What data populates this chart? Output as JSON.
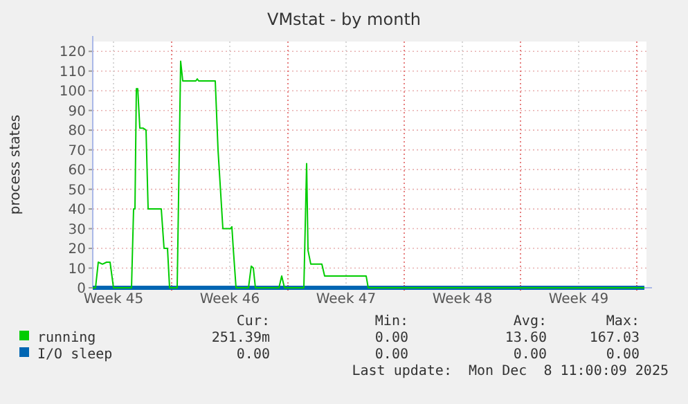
{
  "chart_data": {
    "type": "line",
    "title": "VMstat - by month",
    "ylabel": "process states",
    "xlim": [
      "2025-11-05T06:00",
      "2025-12-08T14:00"
    ],
    "xticks": [
      {
        "value": "2025-11-06T12:00",
        "label": "Week 45"
      },
      {
        "value": "2025-11-10T00:00",
        "label": null
      },
      {
        "value": "2025-11-13T12:00",
        "label": "Week 46"
      },
      {
        "value": "2025-11-17T00:00",
        "label": null
      },
      {
        "value": "2025-11-20T12:00",
        "label": "Week 47"
      },
      {
        "value": "2025-11-24T00:00",
        "label": null
      },
      {
        "value": "2025-11-27T12:00",
        "label": "Week 48"
      },
      {
        "value": "2025-12-01T00:00",
        "label": null
      },
      {
        "value": "2025-12-04T12:00",
        "label": "Week 49"
      },
      {
        "value": "2025-12-08T00:00",
        "label": null
      }
    ],
    "ylim": [
      0,
      125
    ],
    "yticks": [
      0,
      10,
      20,
      30,
      40,
      50,
      60,
      70,
      80,
      90,
      100,
      110,
      120
    ],
    "grid": true,
    "legend": "bottom",
    "series": [
      {
        "name": "I/O sleep",
        "color": "#0066b3",
        "x": [
          "2025-11-05T06:00",
          "2025-12-08T11:00"
        ],
        "values": [
          0,
          0
        ]
      },
      {
        "name": "running",
        "color": "#00cc00",
        "x": [
          "2025-11-05T06:00",
          "2025-11-05T10:00",
          "2025-11-05T14:00",
          "2025-11-05T20:00",
          "2025-11-06T02:00",
          "2025-11-06T07:00",
          "2025-11-06T12:00",
          "2025-11-07T14:00",
          "2025-11-07T17:00",
          "2025-11-07T19:00",
          "2025-11-07T21:00",
          "2025-11-07T23:00",
          "2025-11-08T02:00",
          "2025-11-08T07:00",
          "2025-11-08T11:00",
          "2025-11-08T14:00",
          "2025-11-09T06:00",
          "2025-11-09T09:00",
          "2025-11-09T13:00",
          "2025-11-09T18:00",
          "2025-11-09T21:00",
          "2025-11-10T08:00",
          "2025-11-10T13:00",
          "2025-11-10T16:00",
          "2025-11-11T11:00",
          "2025-11-11T13:00",
          "2025-11-11T15:00",
          "2025-11-12T15:00",
          "2025-11-12T19:00",
          "2025-11-13T02:00",
          "2025-11-13T13:00",
          "2025-11-13T15:00",
          "2025-11-13T17:00",
          "2025-11-13T21:00",
          "2025-11-14T15:00",
          "2025-11-14T19:00",
          "2025-11-14T22:00",
          "2025-11-15T01:00",
          "2025-11-16T11:00",
          "2025-11-16T15:00",
          "2025-11-16T19:00",
          "2025-11-17T23:00",
          "2025-11-18T03:00",
          "2025-11-18T05:00",
          "2025-11-18T09:00",
          "2025-11-19T01:00",
          "2025-11-19T05:00",
          "2025-11-20T05:00",
          "2025-11-21T17:00",
          "2025-11-21T20:00",
          "2025-12-08T11:00"
        ],
        "values": [
          0,
          0,
          13,
          12,
          13,
          13,
          0,
          0,
          40,
          40,
          101,
          101,
          81,
          81,
          80,
          40,
          40,
          40,
          20,
          20,
          0,
          0,
          115,
          105,
          105,
          106,
          105,
          105,
          70,
          30,
          30,
          31,
          20,
          0,
          0,
          11,
          10,
          0,
          0,
          6,
          0,
          0,
          63,
          19,
          12,
          12,
          6,
          6,
          6,
          0,
          0
        ]
      }
    ],
    "annotations": [
      "Cur:",
      "Min:",
      "Avg:",
      "Max:",
      "0.00",
      "0.00",
      "0.00",
      "0.00",
      "251.39m",
      "0.00",
      "13.60",
      "167.03",
      "Last update:  Mon Dec  8 11:00:09 2025"
    ]
  }
}
